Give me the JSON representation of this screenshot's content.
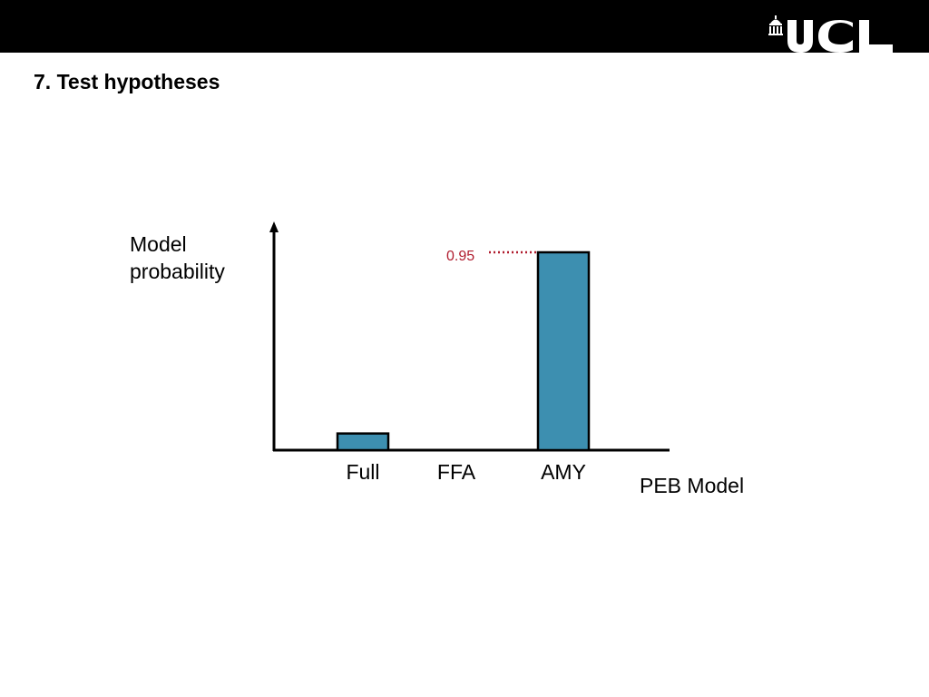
{
  "slide": {
    "title": "7. Test hypotheses",
    "logo_text": "UCL",
    "header_color": "#000000"
  },
  "chart_data": {
    "type": "bar",
    "categories": [
      "Full",
      "FFA",
      "AMY"
    ],
    "values": [
      0.08,
      0.0,
      0.95
    ],
    "ylim": [
      0,
      1.0
    ],
    "ylabel_lines": [
      "Model",
      "probability"
    ],
    "xlabel": "PEB Model",
    "annotation": {
      "label": "0.95",
      "category": "AMY",
      "value": 0.95,
      "color": "#b01c2e"
    },
    "bar_color": "#3d8fb0",
    "grid": false,
    "legend": "none"
  }
}
